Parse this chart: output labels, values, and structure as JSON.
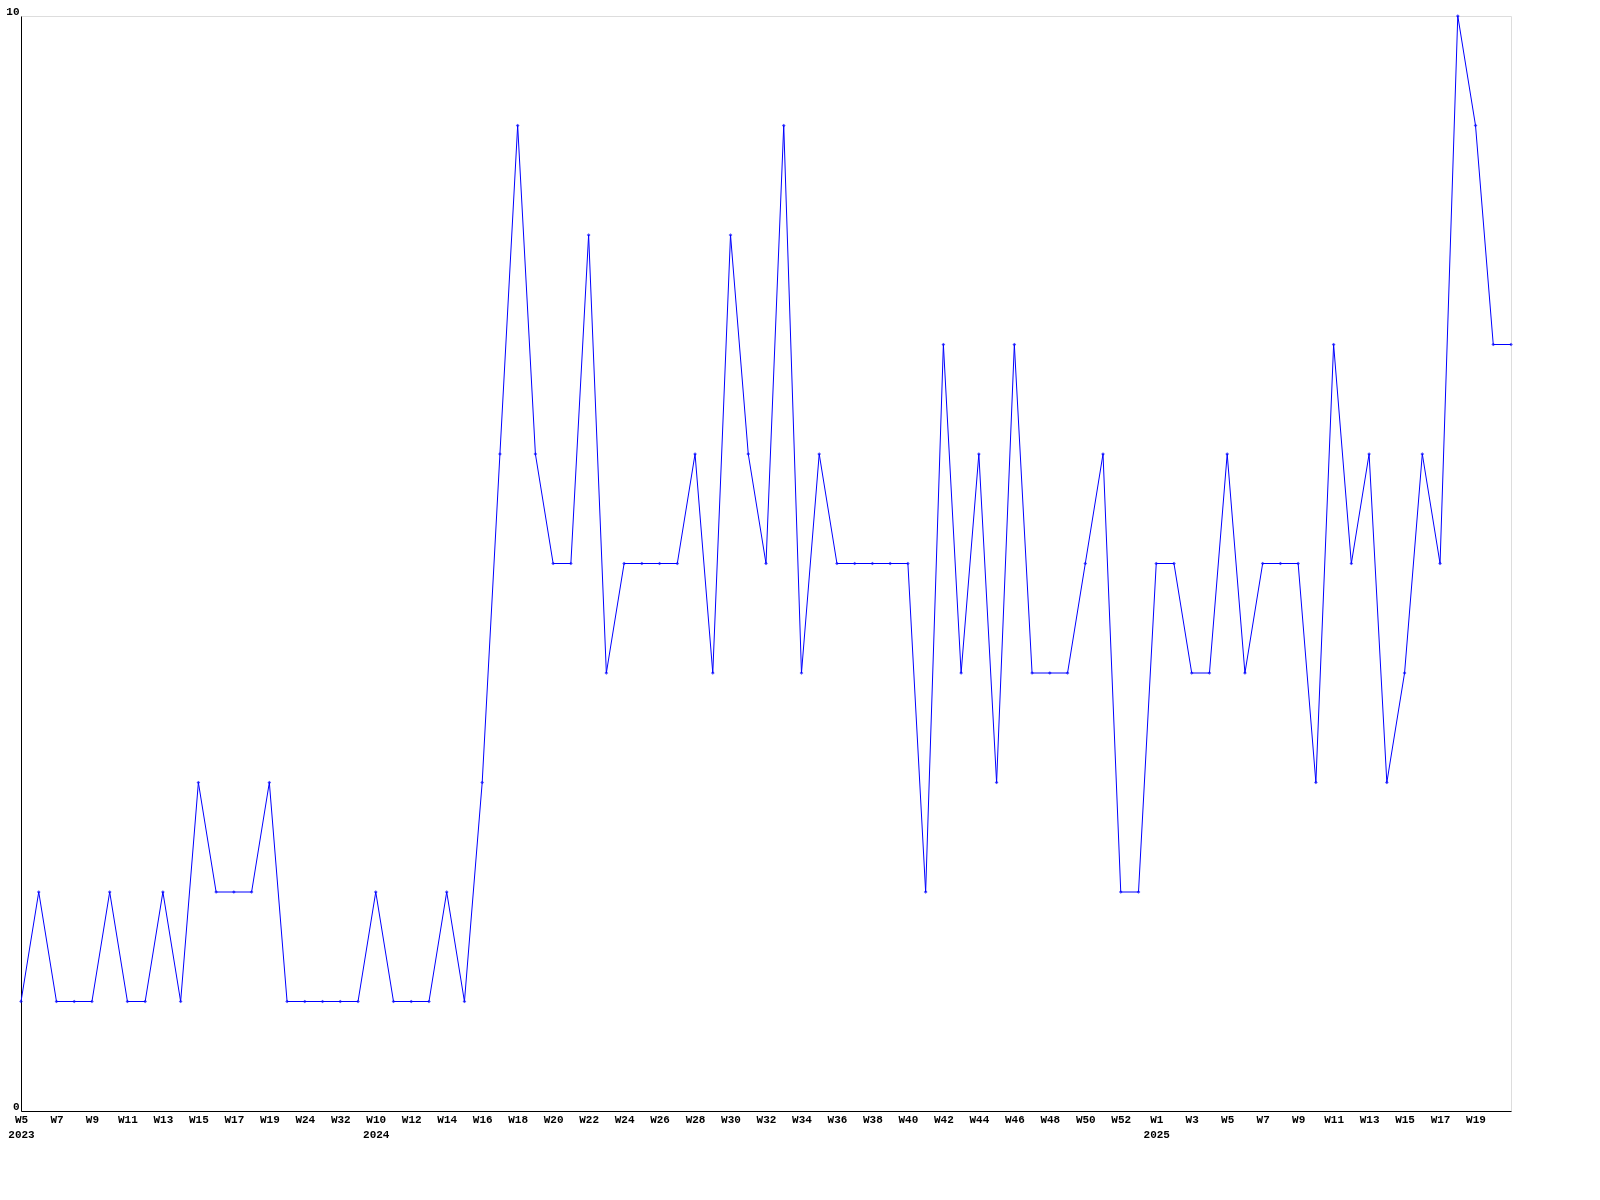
{
  "chart_data": {
    "type": "line",
    "categories": [
      "W5\n2023",
      null,
      "W7",
      null,
      "W9",
      null,
      "W11",
      null,
      "W13",
      null,
      "W15",
      null,
      "W17",
      null,
      "W19",
      null,
      "W24",
      null,
      "W32",
      null,
      "W10\n2024",
      null,
      "W12",
      null,
      "W14",
      null,
      "W16",
      null,
      "W18",
      null,
      "W20",
      null,
      "W22",
      null,
      "W24",
      null,
      "W26",
      null,
      "W28",
      null,
      "W30",
      null,
      "W32",
      null,
      "W34",
      null,
      "W36",
      null,
      "W38",
      null,
      "W40",
      null,
      "W42",
      null,
      "W44",
      null,
      "W46",
      null,
      "W48",
      null,
      "W50",
      null,
      "W52",
      null,
      "W1\n2025",
      null,
      "W3",
      null,
      "W5",
      null,
      "W7",
      null,
      "W9",
      null,
      "W11",
      null,
      "W13",
      null,
      "W15",
      null,
      "W17",
      null,
      "W19",
      null,
      null
    ],
    "series": [
      {
        "color": "#0000ff",
        "values": [
          1,
          2,
          1,
          1,
          1,
          2,
          1,
          1,
          2,
          1,
          3,
          2,
          2,
          2,
          3,
          1,
          1,
          1,
          1,
          1,
          2,
          1,
          1,
          1,
          2,
          1,
          3,
          6,
          9,
          6,
          5,
          5,
          8,
          4,
          5,
          5,
          5,
          5,
          6,
          4,
          8,
          6,
          5,
          9,
          4,
          6,
          5,
          5,
          5,
          5,
          5,
          2,
          7,
          4,
          6,
          3,
          7,
          4,
          4,
          4,
          5,
          6,
          2,
          2,
          5,
          5,
          4,
          4,
          6,
          4,
          5,
          5,
          5,
          3,
          7,
          5,
          6,
          3,
          4,
          6,
          5,
          10,
          9,
          7,
          7
        ]
      }
    ],
    "ylim": [
      0,
      10
    ],
    "yticks": [
      0,
      10
    ],
    "grid": false,
    "marker": "diamond",
    "line_style": "solid"
  }
}
